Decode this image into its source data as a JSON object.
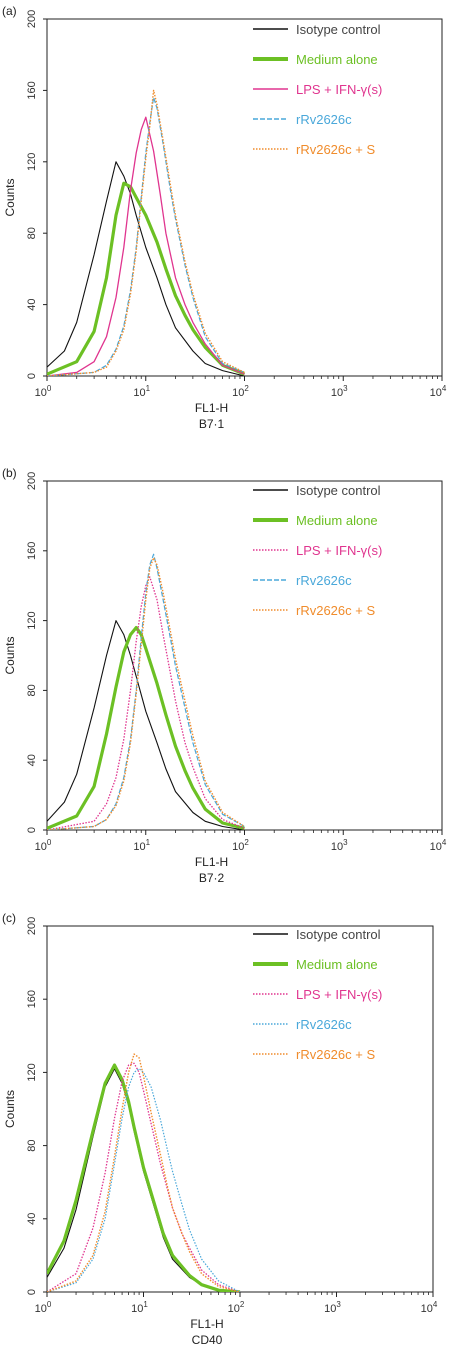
{
  "chart_data": [
    {
      "type": "line",
      "panel_label": "(a)",
      "xlabel": "FL1-H",
      "xsublabel": "B7·1",
      "ylabel": "Counts",
      "xscale": "log",
      "xlim": [
        1,
        10000
      ],
      "ylim": [
        0,
        200
      ],
      "x_ticks": [
        {
          "base": "10",
          "exp": "0"
        },
        {
          "base": "10",
          "exp": "1"
        },
        {
          "base": "10",
          "exp": "2"
        },
        {
          "base": "10",
          "exp": "3"
        },
        {
          "base": "10",
          "exp": "4"
        }
      ],
      "y_ticks": [
        "0",
        "40",
        "80",
        "120",
        "160",
        "200"
      ],
      "legend_position": "top-right",
      "series": [
        {
          "name": "Isotype control",
          "color": "#111111",
          "style": "solid",
          "width": 1.1,
          "x": [
            1,
            1.5,
            2,
            3,
            4,
            5,
            6,
            7,
            8,
            10,
            13,
            16,
            20,
            30,
            40,
            60,
            100
          ],
          "y": [
            5,
            14,
            30,
            68,
            98,
            120,
            112,
            102,
            90,
            72,
            55,
            40,
            27,
            14,
            7,
            3,
            0
          ]
        },
        {
          "name": "Medium alone",
          "color": "#6cc024",
          "style": "solid",
          "width": 3.2,
          "x": [
            1,
            2,
            3,
            4,
            5,
            6,
            7,
            8,
            10,
            13,
            16,
            20,
            25,
            30,
            40,
            60,
            100
          ],
          "y": [
            1,
            8,
            25,
            55,
            90,
            108,
            106,
            100,
            90,
            75,
            60,
            45,
            34,
            26,
            16,
            6,
            1
          ]
        },
        {
          "name": "LPS + IFN-γ(s)",
          "color": "#e0358f",
          "style": "solid",
          "width": 1.3,
          "x": [
            1,
            2,
            3,
            4,
            5,
            6,
            7,
            8,
            9,
            10,
            12,
            14,
            16,
            20,
            25,
            30,
            40,
            60,
            100
          ],
          "y": [
            0,
            2,
            8,
            22,
            44,
            72,
            104,
            125,
            138,
            145,
            126,
            102,
            80,
            55,
            40,
            30,
            18,
            6,
            1
          ]
        },
        {
          "name": "rRv2626c",
          "color": "#4aa8da",
          "style": "dashed",
          "width": 1.2,
          "x": [
            1,
            3,
            4,
            5,
            6,
            7,
            8,
            9,
            10,
            11,
            12,
            13,
            15,
            18,
            20,
            25,
            30,
            40,
            60,
            100
          ],
          "y": [
            0,
            2,
            6,
            15,
            28,
            48,
            72,
            100,
            125,
            142,
            156,
            150,
            130,
            102,
            88,
            62,
            44,
            22,
            7,
            2
          ]
        },
        {
          "name": "rRv2626c + S",
          "color": "#f08c2c",
          "style": "dotted",
          "width": 1.4,
          "x": [
            1,
            3,
            4,
            5,
            6,
            7,
            8,
            9,
            10,
            11,
            12,
            13,
            15,
            18,
            20,
            25,
            30,
            40,
            60,
            100
          ],
          "y": [
            0,
            2,
            5,
            14,
            26,
            46,
            70,
            98,
            122,
            140,
            160,
            152,
            132,
            105,
            90,
            64,
            46,
            24,
            8,
            2
          ]
        }
      ]
    },
    {
      "type": "line",
      "panel_label": "(b)",
      "xlabel": "FL1-H",
      "xsublabel": "B7·2",
      "ylabel": "Counts",
      "xscale": "log",
      "xlim": [
        1,
        10000
      ],
      "ylim": [
        0,
        200
      ],
      "x_ticks": [
        {
          "base": "10",
          "exp": "0"
        },
        {
          "base": "10",
          "exp": "1"
        },
        {
          "base": "10",
          "exp": "2"
        },
        {
          "base": "10",
          "exp": "3"
        },
        {
          "base": "10",
          "exp": "4"
        }
      ],
      "y_ticks": [
        "0",
        "40",
        "80",
        "120",
        "160",
        "200"
      ],
      "legend_position": "top-right",
      "series": [
        {
          "name": "Isotype control",
          "color": "#111111",
          "style": "solid",
          "width": 1.1,
          "x": [
            1,
            1.5,
            2,
            3,
            4,
            5,
            6,
            7,
            8,
            10,
            13,
            16,
            20,
            30,
            40,
            60,
            100
          ],
          "y": [
            5,
            16,
            32,
            70,
            100,
            120,
            112,
            100,
            88,
            68,
            50,
            35,
            22,
            10,
            5,
            2,
            0
          ]
        },
        {
          "name": "Medium alone",
          "color": "#6cc024",
          "style": "solid",
          "width": 3.2,
          "x": [
            1,
            2,
            3,
            4,
            5,
            6,
            7,
            8,
            9,
            10,
            13,
            16,
            20,
            25,
            30,
            40,
            60,
            100
          ],
          "y": [
            1,
            8,
            25,
            55,
            82,
            102,
            112,
            116,
            112,
            104,
            84,
            66,
            48,
            34,
            24,
            12,
            4,
            1
          ]
        },
        {
          "name": "LPS + IFN-γ(s)",
          "color": "#e0358f",
          "style": "dotted",
          "width": 1.3,
          "x": [
            1,
            3,
            4,
            5,
            6,
            7,
            8,
            9,
            10,
            11,
            13,
            15,
            18,
            20,
            25,
            30,
            40,
            60,
            100
          ],
          "y": [
            0,
            5,
            15,
            30,
            52,
            80,
            108,
            128,
            140,
            145,
            132,
            112,
            88,
            74,
            50,
            36,
            18,
            6,
            1
          ]
        },
        {
          "name": "rRv2626c",
          "color": "#4aa8da",
          "style": "dashed",
          "width": 1.2,
          "x": [
            1,
            3,
            4,
            5,
            6,
            7,
            8,
            9,
            10,
            11,
            12,
            13,
            15,
            18,
            20,
            25,
            30,
            40,
            60,
            100
          ],
          "y": [
            0,
            2,
            6,
            15,
            30,
            52,
            80,
            110,
            136,
            152,
            158,
            150,
            132,
            108,
            94,
            70,
            50,
            26,
            9,
            2
          ]
        },
        {
          "name": "rRv2626c + S",
          "color": "#f08c2c",
          "style": "dotted",
          "width": 1.4,
          "x": [
            1,
            3,
            4,
            5,
            6,
            7,
            8,
            9,
            10,
            11,
            12,
            13,
            15,
            18,
            20,
            25,
            30,
            40,
            60,
            100
          ],
          "y": [
            0,
            2,
            6,
            14,
            28,
            50,
            78,
            106,
            132,
            150,
            156,
            152,
            136,
            112,
            98,
            74,
            54,
            28,
            10,
            2
          ]
        }
      ]
    },
    {
      "type": "line",
      "panel_label": "(c)",
      "xlabel": "FL1-H",
      "xsublabel": "CD40",
      "ylabel": "Counts",
      "xscale": "log",
      "xlim": [
        1,
        10000
      ],
      "ylim": [
        0,
        200
      ],
      "x_ticks": [
        {
          "base": "10",
          "exp": "0"
        },
        {
          "base": "10",
          "exp": "1"
        },
        {
          "base": "10",
          "exp": "2"
        },
        {
          "base": "10",
          "exp": "3"
        },
        {
          "base": "10",
          "exp": "4"
        }
      ],
      "y_ticks": [
        "0",
        "40",
        "80",
        "120",
        "160",
        "200"
      ],
      "legend_position": "top-right",
      "series": [
        {
          "name": "Isotype control",
          "color": "#111111",
          "style": "solid",
          "width": 1.1,
          "x": [
            1,
            1.5,
            2,
            3,
            4,
            5,
            6,
            7,
            8,
            10,
            13,
            16,
            20,
            30,
            40,
            60,
            100
          ],
          "y": [
            8,
            24,
            45,
            85,
            112,
            122,
            114,
            102,
            88,
            66,
            46,
            30,
            18,
            8,
            4,
            1,
            0
          ]
        },
        {
          "name": "Medium alone",
          "color": "#6cc024",
          "style": "solid",
          "width": 3.2,
          "x": [
            1,
            1.5,
            2,
            3,
            4,
            5,
            6,
            7,
            8,
            10,
            13,
            16,
            20,
            30,
            40,
            60,
            100
          ],
          "y": [
            10,
            28,
            50,
            88,
            114,
            124,
            116,
            104,
            90,
            68,
            48,
            32,
            20,
            9,
            4,
            1,
            0
          ]
        },
        {
          "name": "LPS + IFN-γ(s)",
          "color": "#e0358f",
          "style": "dotted",
          "width": 1.3,
          "x": [
            1,
            2,
            3,
            4,
            5,
            6,
            7,
            8,
            9,
            10,
            12,
            15,
            20,
            25,
            30,
            40,
            60,
            100
          ],
          "y": [
            0,
            10,
            35,
            65,
            95,
            115,
            124,
            125,
            120,
            110,
            92,
            70,
            46,
            32,
            24,
            12,
            4,
            0
          ]
        },
        {
          "name": "rRv2626c",
          "color": "#4aa8da",
          "style": "dotted",
          "width": 1.2,
          "x": [
            1,
            2,
            3,
            4,
            5,
            6,
            7,
            8,
            9,
            10,
            12,
            15,
            18,
            20,
            25,
            30,
            40,
            60,
            100
          ],
          "y": [
            0,
            5,
            18,
            40,
            70,
            95,
            112,
            120,
            122,
            120,
            112,
            94,
            76,
            66,
            48,
            34,
            18,
            6,
            0
          ]
        },
        {
          "name": "rRv2626c + S",
          "color": "#f08c2c",
          "style": "dotted",
          "width": 1.4,
          "x": [
            1,
            2,
            3,
            4,
            5,
            6,
            7,
            8,
            9,
            10,
            12,
            15,
            18,
            20,
            25,
            30,
            40,
            60,
            100
          ],
          "y": [
            0,
            6,
            20,
            44,
            74,
            100,
            120,
            130,
            128,
            118,
            98,
            75,
            56,
            46,
            32,
            22,
            10,
            3,
            0
          ]
        }
      ]
    }
  ]
}
